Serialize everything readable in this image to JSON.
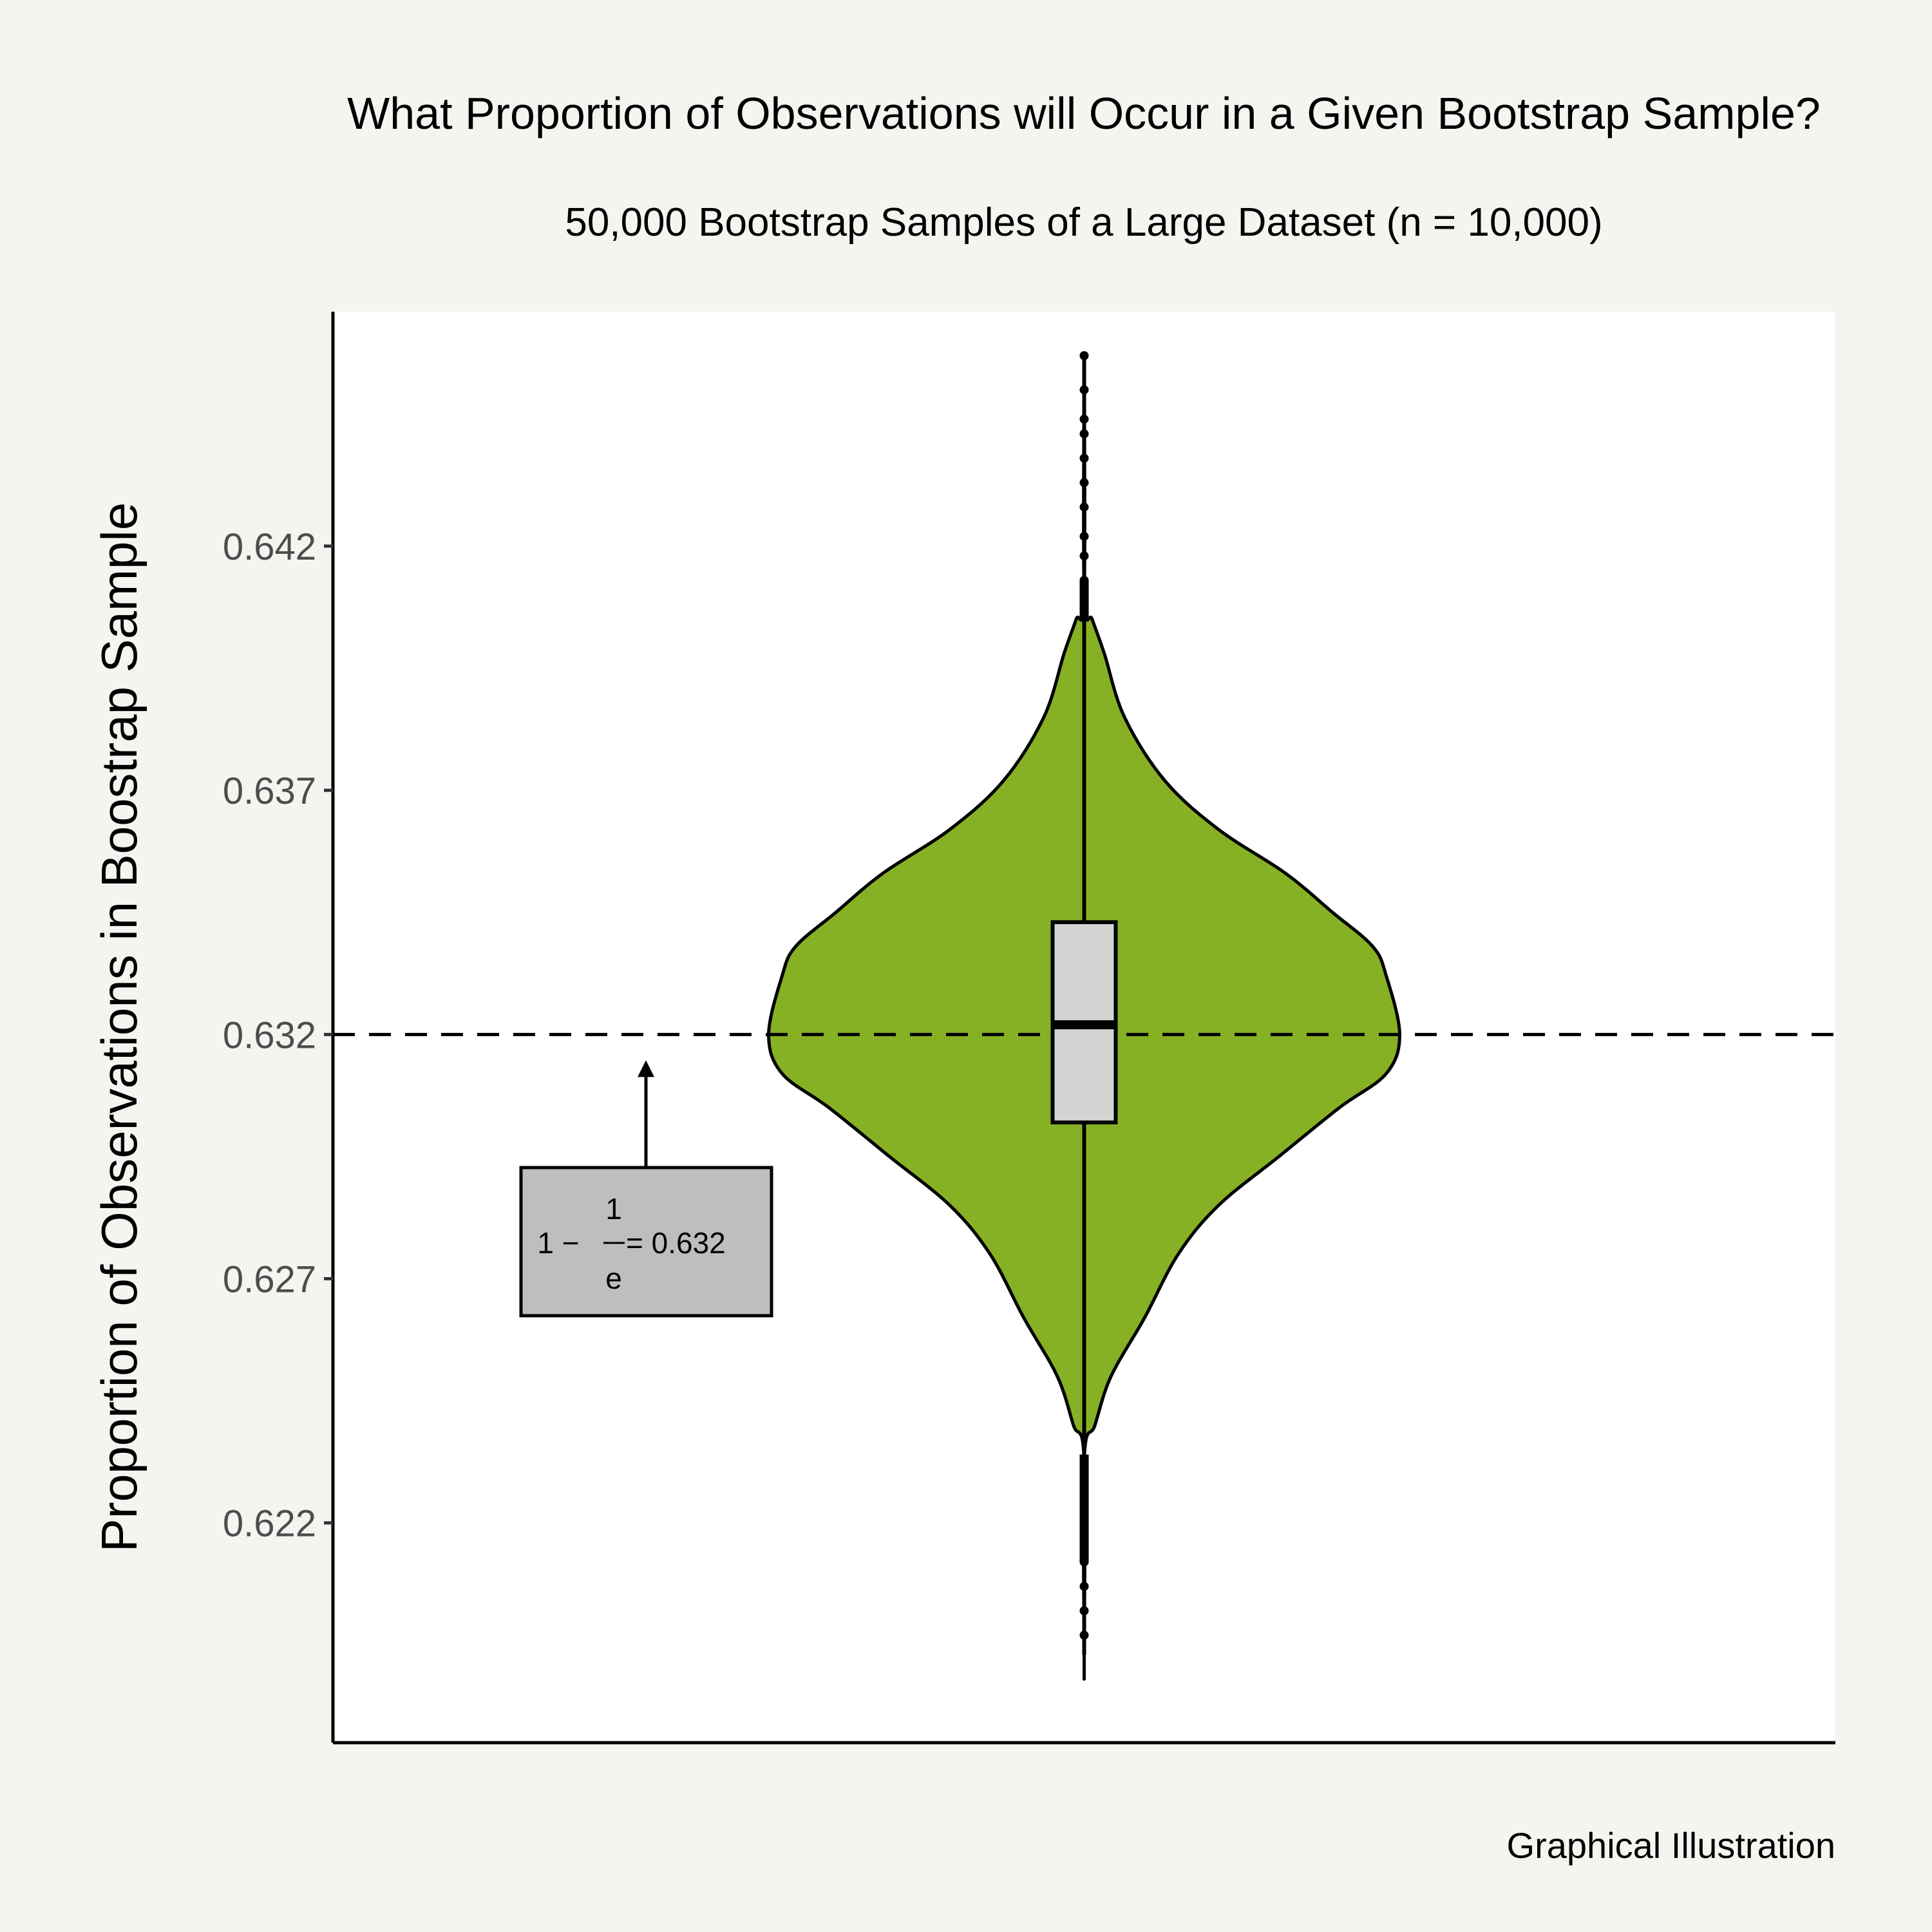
{
  "chart_data": {
    "type": "violin",
    "title": "What Proportion of Observations will Occur in a Given Bootstrap Sample?",
    "subtitle": "50,000 Bootstrap Samples of a Large Dataset (n = 10,000)",
    "ylabel": "Proportion of Observations in Boostrap Sample",
    "xlabel": "",
    "caption": "Graphical Illustration",
    "ylim": [
      0.6175,
      0.6468
    ],
    "yticks": [
      0.622,
      0.627,
      0.632,
      0.637,
      0.642
    ],
    "ytick_labels": [
      "0.622",
      "0.627",
      "0.632",
      "0.637",
      "0.642"
    ],
    "grid": false,
    "violin": {
      "fill": "#86b125",
      "outline": "#000000",
      "min": 0.6193,
      "max": 0.6459,
      "max_half_width_fraction": 0.21,
      "density_profile": [
        [
          0.6459,
          0.0
        ],
        [
          0.641,
          0.0
        ],
        [
          0.6405,
          0.006
        ],
        [
          0.6398,
          0.015
        ],
        [
          0.6385,
          0.03
        ],
        [
          0.6372,
          0.06
        ],
        [
          0.6362,
          0.1
        ],
        [
          0.6353,
          0.15
        ],
        [
          0.6345,
          0.185
        ],
        [
          0.6338,
          0.215
        ],
        [
          0.6332,
          0.225
        ],
        [
          0.632,
          0.235
        ],
        [
          0.6312,
          0.225
        ],
        [
          0.6305,
          0.19
        ],
        [
          0.6295,
          0.145
        ],
        [
          0.6285,
          0.1
        ],
        [
          0.6275,
          0.07
        ],
        [
          0.6262,
          0.045
        ],
        [
          0.625,
          0.02
        ],
        [
          0.624,
          0.008
        ],
        [
          0.6233,
          0.0
        ],
        [
          0.6193,
          0.0
        ]
      ]
    },
    "boxplot": {
      "fill": "#d3d3d3",
      "q1": 0.6302,
      "median": 0.6322,
      "q3": 0.6343,
      "whisker_low": 0.6193,
      "whisker_high": 0.6459,
      "outliers": [
        0.6459,
        0.6452,
        0.6446,
        0.6443,
        0.6438,
        0.6433,
        0.6428,
        0.6422,
        0.6418,
        0.6413,
        0.6197,
        0.6202,
        0.6207,
        0.6212,
        0.6217,
        0.6221,
        0.6226,
        0.623
      ]
    },
    "reference_line": {
      "y": 0.632,
      "style": "dashed"
    },
    "annotation": {
      "lead": "1 −",
      "numerator": "1",
      "denominator": "e",
      "result": "= 0.632",
      "fill": "#bebebe",
      "points_to_y": 0.632
    }
  }
}
